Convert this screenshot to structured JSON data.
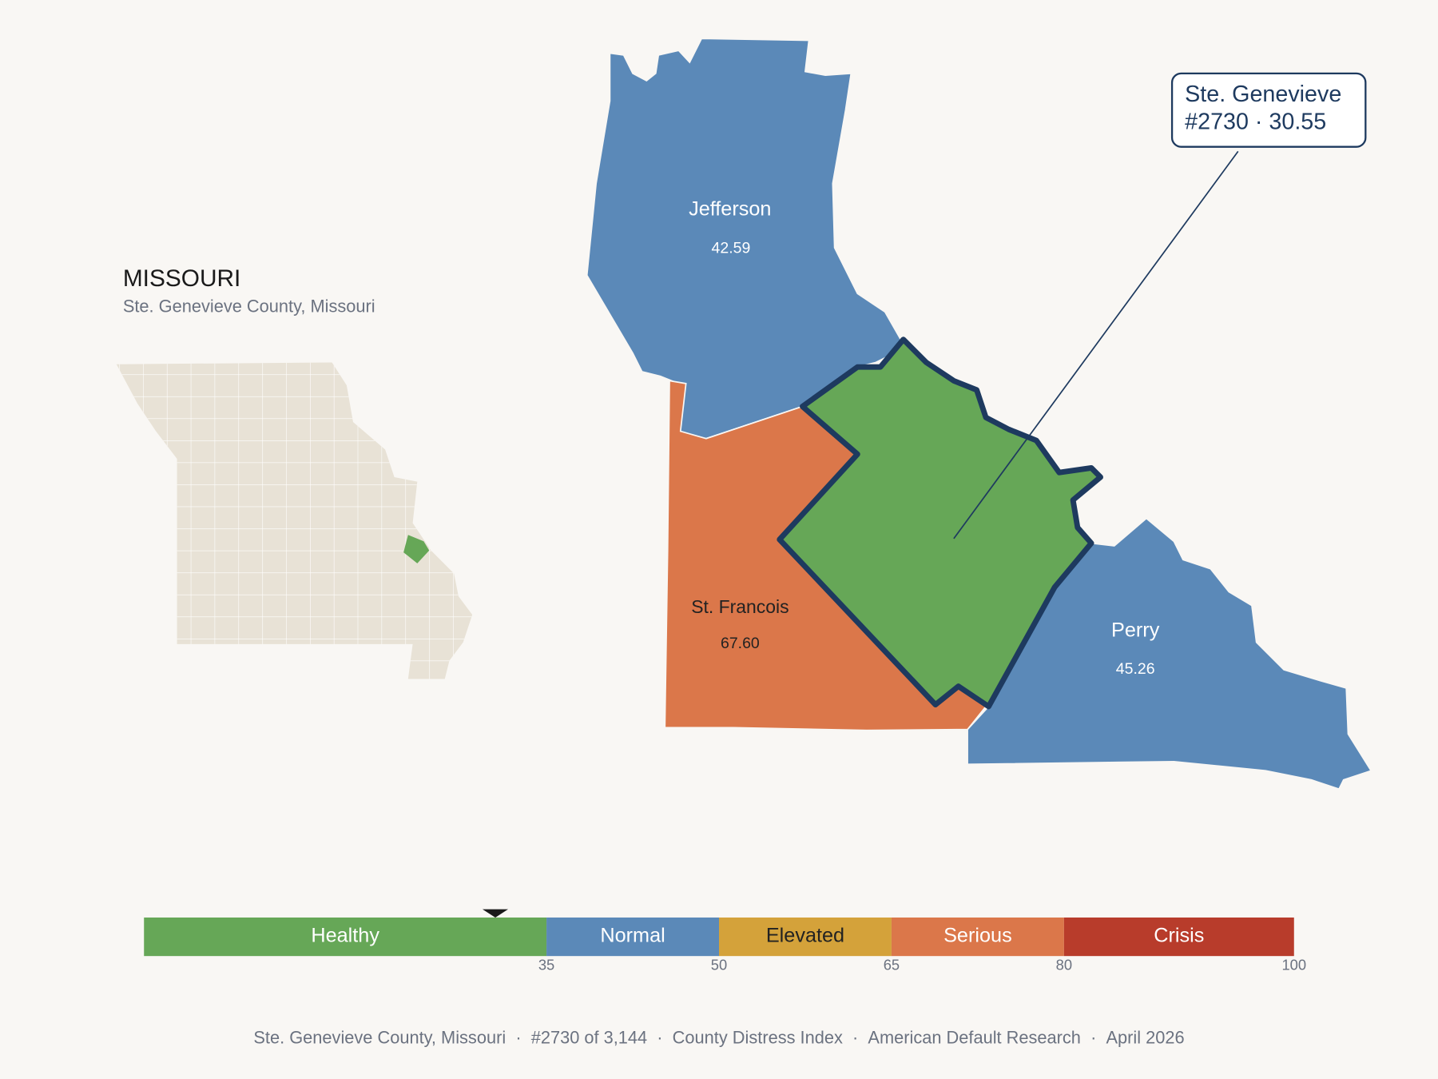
{
  "state": {
    "title": "MISSOURI",
    "subtitle": "Ste. Genevieve County, Missouri"
  },
  "focus": {
    "name": "Ste. Genevieve",
    "detail": "#2730 · 30.55",
    "score": 30.55
  },
  "counties": [
    {
      "name": "Jefferson",
      "value": 42.59,
      "value_label": "42.59"
    },
    {
      "name": "St. Francois",
      "value": 67.6,
      "value_label": "67.60"
    },
    {
      "name": "Perry",
      "value": 45.26,
      "value_label": "45.26"
    }
  ],
  "scale": {
    "range": [
      0,
      100
    ],
    "bands": [
      {
        "label": "Healthy",
        "from": 0,
        "to": 35,
        "color": "#66a757",
        "label_color": "#ffffff"
      },
      {
        "label": "Normal",
        "from": 35,
        "to": 50,
        "color": "#5b89b8",
        "label_color": "#ffffff"
      },
      {
        "label": "Elevated",
        "from": 50,
        "to": 65,
        "color": "#d4a23a",
        "label_color": "#222222"
      },
      {
        "label": "Serious",
        "from": 65,
        "to": 80,
        "color": "#db774a",
        "label_color": "#ffffff"
      },
      {
        "label": "Crisis",
        "from": 80,
        "to": 100,
        "color": "#b83c2b",
        "label_color": "#ffffff"
      }
    ],
    "ticks": [
      35,
      50,
      65,
      80,
      100
    ]
  },
  "footer": {
    "items": [
      "Ste. Genevieve County, Missouri",
      "#2730 of 3,144",
      "County Distress Index",
      "American Default Research",
      "April 2026"
    ],
    "separator": "·"
  }
}
